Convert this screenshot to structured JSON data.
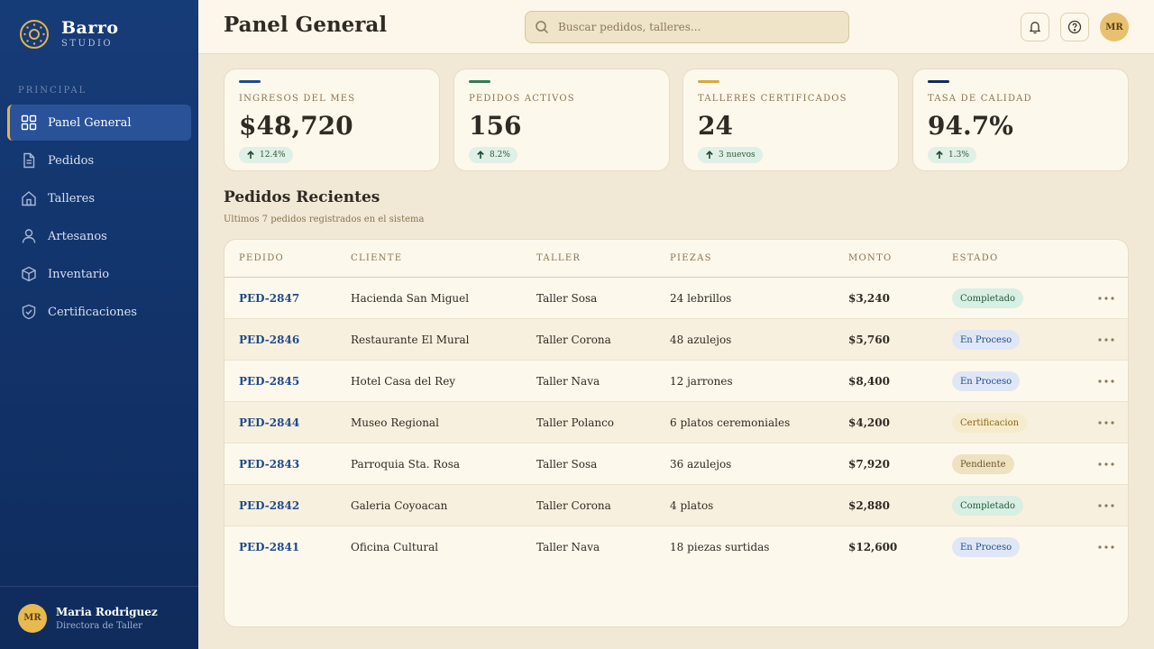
{
  "brand": {
    "name": "Barro",
    "subtitle": "STUDIO",
    "logo_icon": "sun-medallion-icon"
  },
  "sidebar": {
    "section_label": "PRINCIPAL",
    "items": [
      {
        "label": "Panel General",
        "icon": "grid-icon",
        "active": true
      },
      {
        "label": "Pedidos",
        "icon": "document-icon",
        "active": false
      },
      {
        "label": "Talleres",
        "icon": "house-icon",
        "active": false
      },
      {
        "label": "Artesanos",
        "icon": "person-icon",
        "active": false
      },
      {
        "label": "Inventario",
        "icon": "box-icon",
        "active": false
      },
      {
        "label": "Certificaciones",
        "icon": "shield-check-icon",
        "active": false
      }
    ],
    "user": {
      "initials": "MR",
      "name": "Maria Rodriguez",
      "role": "Directora de Taller"
    }
  },
  "header": {
    "title": "Panel General",
    "search_placeholder": "Buscar pedidos, talleres...",
    "avatar_initials": "MR"
  },
  "stats": [
    {
      "label": "INGRESOS DEL MES",
      "value": "$48,720",
      "change": "12.4%",
      "accent": "#1f4a8c"
    },
    {
      "label": "PEDIDOS ACTIVOS",
      "value": "156",
      "change": "8.2%",
      "accent": "#2e7d55"
    },
    {
      "label": "TALLERES CERTIFICADOS",
      "value": "24",
      "change": "3 nuevos",
      "accent": "#d9a63a"
    },
    {
      "label": "TASA DE CALIDAD",
      "value": "94.7%",
      "change": "1.3%",
      "accent": "#0f2b5c"
    }
  ],
  "orders": {
    "title": "Pedidos Recientes",
    "subtitle": "Ultimos 7 pedidos registrados en el sistema",
    "columns": [
      "PEDIDO",
      "CLIENTE",
      "TALLER",
      "PIEZAS",
      "MONTO",
      "ESTADO"
    ],
    "rows": [
      {
        "id": "PED-2847",
        "client": "Hacienda San Miguel",
        "workshop": "Taller Sosa",
        "pieces": "24 lebrillos",
        "amount": "$3,240",
        "status": "Completado"
      },
      {
        "id": "PED-2846",
        "client": "Restaurante El Mural",
        "workshop": "Taller Corona",
        "pieces": "48 azulejos",
        "amount": "$5,760",
        "status": "En Proceso"
      },
      {
        "id": "PED-2845",
        "client": "Hotel Casa del Rey",
        "workshop": "Taller Nava",
        "pieces": "12 jarrones",
        "amount": "$8,400",
        "status": "En Proceso"
      },
      {
        "id": "PED-2844",
        "client": "Museo Regional",
        "workshop": "Taller Polanco",
        "pieces": "6 platos ceremoniales",
        "amount": "$4,200",
        "status": "Certificacion"
      },
      {
        "id": "PED-2843",
        "client": "Parroquia Sta. Rosa",
        "workshop": "Taller Sosa",
        "pieces": "36 azulejos",
        "amount": "$7,920",
        "status": "Pendiente"
      },
      {
        "id": "PED-2842",
        "client": "Galeria Coyoacan",
        "workshop": "Taller Corona",
        "pieces": "4 platos",
        "amount": "$2,880",
        "status": "Completado"
      },
      {
        "id": "PED-2841",
        "client": "Oficina Cultural",
        "workshop": "Taller Nava",
        "pieces": "18 piezas surtidas",
        "amount": "$12,600",
        "status": "En Proceso"
      }
    ]
  }
}
